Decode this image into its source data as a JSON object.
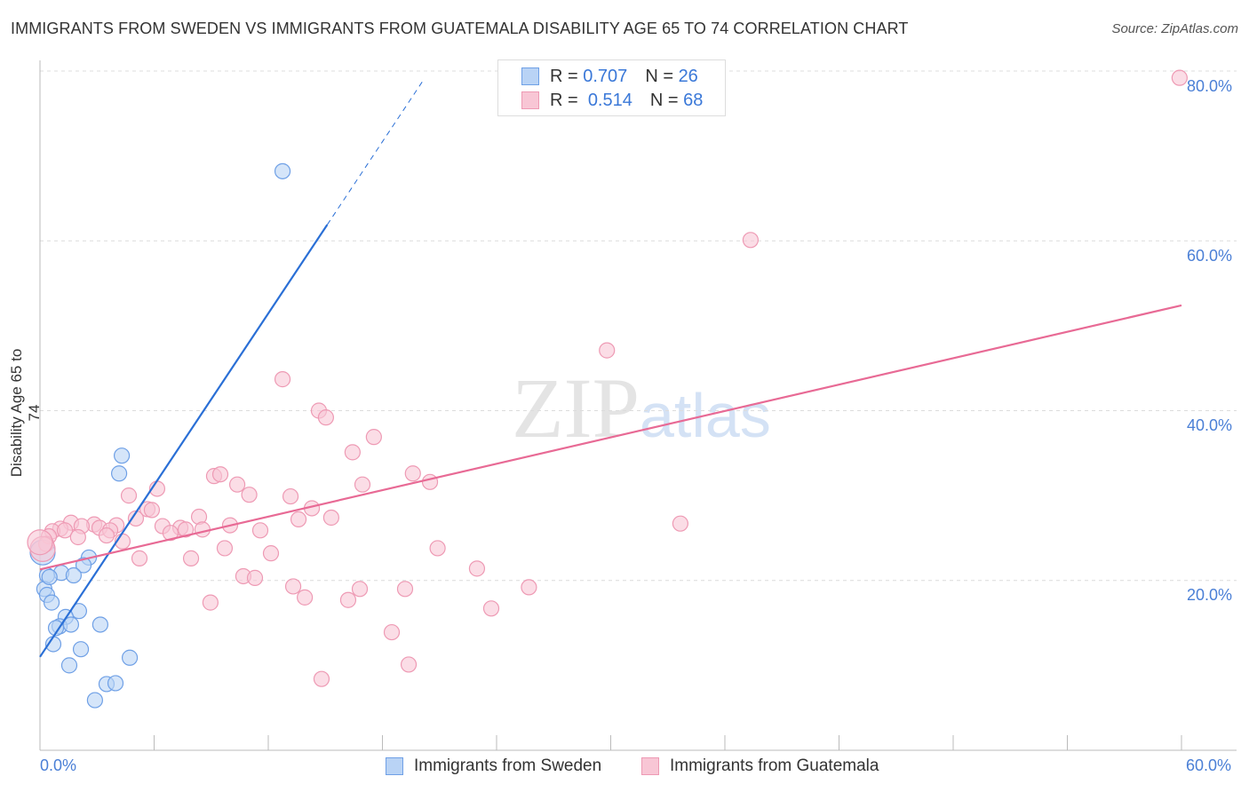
{
  "title": "IMMIGRANTS FROM SWEDEN VS IMMIGRANTS FROM GUATEMALA DISABILITY AGE 65 TO 74 CORRELATION CHART",
  "source": "Source: ZipAtlas.com",
  "watermark": "ZIPatlas",
  "colors": {
    "sweden": "#6fa0e6",
    "sweden_fill": "#b9d3f5",
    "sweden_line": "#2a6fd6",
    "guatemala": "#ee9ab4",
    "guatemala_fill": "#f8c6d5",
    "guatemala_line": "#e86a95"
  },
  "legend": {
    "sweden": {
      "r_label": "R =",
      "r": "0.707",
      "n_label": "N =",
      "n": "26"
    },
    "guatemala": {
      "r_label": "R =",
      "r": "0.514",
      "n_label": "N =",
      "n": "68"
    }
  },
  "chart_data": {
    "type": "scatter",
    "title": "IMMIGRANTS FROM SWEDEN VS IMMIGRANTS FROM GUATEMALA DISABILITY AGE 65 TO 74 CORRELATION CHART",
    "xlabel": "",
    "ylabel": "Disability Age 65 to 74",
    "xlim": [
      0,
      60
    ],
    "ylim": [
      0,
      80
    ],
    "x_tick_labels": [
      "0.0%",
      "60.0%"
    ],
    "y_ticks": [
      20,
      40,
      60,
      80
    ],
    "y_tick_labels": [
      "20.0%",
      "40.0%",
      "60.0%",
      "80.0%"
    ],
    "grid": true,
    "legend_position": "top-center",
    "series": [
      {
        "name": "Immigrants from Sweden",
        "trend": {
          "x0": 0,
          "y0": 11.0,
          "x1": 15.1,
          "y1": 61.9,
          "dashed_to_x": 20.2
        },
        "points": [
          [
            12.75,
            68.2
          ],
          [
            4.3,
            34.7
          ],
          [
            4.16,
            32.6
          ],
          [
            2.57,
            22.7
          ],
          [
            2.29,
            21.8
          ],
          [
            1.12,
            20.9
          ],
          [
            1.77,
            20.6
          ],
          [
            0.37,
            20.6
          ],
          [
            0.23,
            19.0
          ],
          [
            0.37,
            18.3
          ],
          [
            0.61,
            17.4
          ],
          [
            2.05,
            16.4
          ],
          [
            1.35,
            15.7
          ],
          [
            1.03,
            14.6
          ],
          [
            0.84,
            14.4
          ],
          [
            1.63,
            14.8
          ],
          [
            3.17,
            14.8
          ],
          [
            0.7,
            12.5
          ],
          [
            2.15,
            11.9
          ],
          [
            4.72,
            10.9
          ],
          [
            1.54,
            10.0
          ],
          [
            3.5,
            7.8
          ],
          [
            3.97,
            7.9
          ],
          [
            2.89,
            5.9
          ],
          [
            0.14,
            23.3
          ],
          [
            0.5,
            20.4
          ]
        ]
      },
      {
        "name": "Immigrants from Guatemala",
        "trend": {
          "x0": 0,
          "y0": 21.3,
          "x1": 60,
          "y1": 52.4
        },
        "points": [
          [
            59.9,
            79.2
          ],
          [
            37.35,
            60.1
          ],
          [
            29.8,
            47.1
          ],
          [
            12.75,
            43.7
          ],
          [
            14.66,
            40.0
          ],
          [
            15.03,
            39.2
          ],
          [
            17.55,
            36.9
          ],
          [
            16.43,
            35.1
          ],
          [
            19.6,
            32.6
          ],
          [
            20.5,
            31.6
          ],
          [
            16.95,
            31.3
          ],
          [
            9.15,
            32.3
          ],
          [
            9.48,
            32.5
          ],
          [
            10.37,
            31.3
          ],
          [
            11.0,
            30.1
          ],
          [
            6.16,
            30.8
          ],
          [
            4.67,
            30.0
          ],
          [
            13.17,
            29.9
          ],
          [
            14.29,
            28.5
          ],
          [
            13.59,
            27.2
          ],
          [
            15.31,
            27.4
          ],
          [
            5.65,
            28.4
          ],
          [
            5.88,
            28.3
          ],
          [
            5.04,
            27.3
          ],
          [
            8.36,
            27.5
          ],
          [
            4.02,
            26.5
          ],
          [
            1.63,
            26.8
          ],
          [
            2.85,
            26.6
          ],
          [
            3.13,
            26.2
          ],
          [
            2.19,
            26.4
          ],
          [
            1.07,
            26.1
          ],
          [
            3.69,
            25.9
          ],
          [
            0.65,
            25.8
          ],
          [
            1.31,
            25.9
          ],
          [
            6.44,
            26.4
          ],
          [
            7.38,
            26.2
          ],
          [
            7.66,
            26.0
          ],
          [
            8.54,
            26.0
          ],
          [
            6.86,
            25.6
          ],
          [
            9.99,
            26.5
          ],
          [
            11.58,
            25.9
          ],
          [
            0.47,
            25.2
          ],
          [
            2.0,
            25.1
          ],
          [
            3.5,
            25.3
          ],
          [
            4.34,
            24.6
          ],
          [
            0.33,
            24.3
          ],
          [
            0.14,
            23.7
          ],
          [
            9.71,
            23.8
          ],
          [
            20.9,
            23.8
          ],
          [
            12.14,
            23.2
          ],
          [
            5.23,
            22.6
          ],
          [
            7.94,
            22.6
          ],
          [
            22.97,
            21.4
          ],
          [
            10.69,
            20.5
          ],
          [
            11.3,
            20.3
          ],
          [
            13.31,
            19.3
          ],
          [
            16.81,
            19.0
          ],
          [
            19.19,
            19.0
          ],
          [
            25.7,
            19.2
          ],
          [
            13.92,
            18.0
          ],
          [
            16.2,
            17.7
          ],
          [
            8.96,
            17.4
          ],
          [
            23.72,
            16.7
          ],
          [
            18.49,
            13.9
          ],
          [
            19.38,
            10.1
          ],
          [
            14.8,
            8.4
          ],
          [
            33.66,
            26.7
          ],
          [
            0.0,
            24.5
          ]
        ]
      }
    ]
  }
}
